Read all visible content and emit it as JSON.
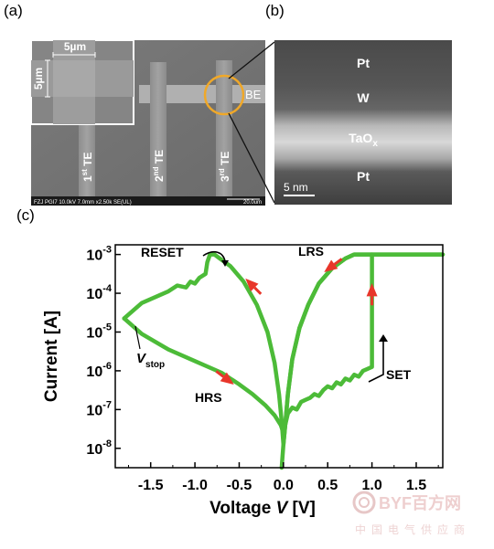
{
  "panels": {
    "a": {
      "label": "(a)",
      "inset_scale_top": "5µm",
      "inset_scale_left": "5µm",
      "be_label": "BE",
      "te_labels": [
        {
          "base": "1",
          "sup": "st",
          "tail": " TE"
        },
        {
          "base": "2",
          "sup": "nd",
          "tail": " TE"
        },
        {
          "base": "3",
          "sup": "rd",
          "tail": " TE"
        }
      ],
      "sem_info": "FZJ PGI7  10.0kV 7.0mm x2.50k SE(UL)",
      "sem_scale": "20.0um"
    },
    "b": {
      "label": "(b)",
      "layers": [
        "Pt",
        "W",
        "TaO",
        "Pt"
      ],
      "tao_sub": "x",
      "scale_bar": "5 nm"
    },
    "c": {
      "label": "(c)",
      "annotations": {
        "reset": "RESET",
        "lrs": "LRS",
        "set": "SET",
        "hrs": "HRS",
        "vstop_main": "V",
        "vstop_sub": "stop"
      }
    }
  },
  "chart_data": {
    "type": "line",
    "title": "",
    "xlabel_main": "Voltage ",
    "xlabel_var": "V",
    "xlabel_unit": " [V]",
    "ylabel": "Current [A]",
    "x_ticks": [
      "-1.5",
      "-1.0",
      "-0.5",
      "0.0",
      "0.5",
      "1.0",
      "1.5"
    ],
    "x_tick_values": [
      -1.5,
      -1.0,
      -0.5,
      0.0,
      0.5,
      1.0,
      1.5
    ],
    "y_ticks": [
      {
        "base": "10",
        "exp": "-3",
        "value": -3
      },
      {
        "base": "10",
        "exp": "-4",
        "value": -4
      },
      {
        "base": "10",
        "exp": "-5",
        "value": -5
      },
      {
        "base": "10",
        "exp": "-6",
        "value": -6
      },
      {
        "base": "10",
        "exp": "-7",
        "value": -7
      },
      {
        "base": "10",
        "exp": "-8",
        "value": -8
      }
    ],
    "xlim": [
      -1.9,
      1.8
    ],
    "ylim_log10": [
      -8.5,
      -2.75
    ],
    "yscale": "log",
    "series_color": "#4cbb38",
    "arrow_color": "#e8362a",
    "series": [
      {
        "name": "",
        "points": [
          [
            -0.02,
            -8.5
          ],
          [
            0.0,
            -7.9
          ],
          [
            0.02,
            -7.4
          ],
          [
            0.05,
            -6.6
          ],
          [
            0.1,
            -5.7
          ],
          [
            0.18,
            -4.9
          ],
          [
            0.28,
            -4.3
          ],
          [
            0.4,
            -3.75
          ],
          [
            0.55,
            -3.35
          ],
          [
            0.7,
            -3.1
          ],
          [
            0.8,
            -3.0
          ],
          [
            1.0,
            -3.0
          ],
          [
            1.4,
            -3.0
          ],
          [
            1.8,
            -3.0
          ]
        ]
      },
      {
        "name": "",
        "points": [
          [
            1.8,
            -3.0
          ],
          [
            1.0,
            -3.0
          ],
          [
            0.8,
            -3.0
          ],
          [
            0.7,
            -3.1
          ],
          [
            0.55,
            -3.35
          ],
          [
            0.4,
            -3.75
          ],
          [
            0.28,
            -4.3
          ],
          [
            0.18,
            -4.9
          ],
          [
            0.1,
            -5.7
          ],
          [
            0.05,
            -6.6
          ],
          [
            0.02,
            -7.4
          ],
          [
            0.0,
            -7.9
          ]
        ]
      },
      {
        "name": "",
        "points": [
          [
            0.0,
            -7.9
          ],
          [
            -0.02,
            -7.3
          ],
          [
            -0.05,
            -6.6
          ],
          [
            -0.1,
            -5.8
          ],
          [
            -0.18,
            -5.0
          ],
          [
            -0.3,
            -4.3
          ],
          [
            -0.45,
            -3.7
          ],
          [
            -0.6,
            -3.3
          ],
          [
            -0.72,
            -3.1
          ],
          [
            -0.78,
            -3.0
          ],
          [
            -0.83,
            -3.0
          ]
        ]
      },
      {
        "name": "",
        "points": [
          [
            -0.83,
            -3.0
          ],
          [
            -0.86,
            -3.2
          ],
          [
            -0.88,
            -3.5
          ],
          [
            -0.95,
            -3.6
          ],
          [
            -1.0,
            -3.75
          ],
          [
            -1.05,
            -3.7
          ],
          [
            -1.1,
            -3.85
          ],
          [
            -1.2,
            -3.8
          ],
          [
            -1.3,
            -3.95
          ],
          [
            -1.4,
            -4.05
          ],
          [
            -1.5,
            -4.15
          ],
          [
            -1.6,
            -4.25
          ],
          [
            -1.7,
            -4.45
          ],
          [
            -1.8,
            -4.65
          ]
        ]
      },
      {
        "name": "",
        "points": [
          [
            -1.8,
            -4.65
          ],
          [
            -1.6,
            -5.05
          ],
          [
            -1.3,
            -5.45
          ],
          [
            -1.0,
            -5.75
          ],
          [
            -0.7,
            -6.05
          ],
          [
            -0.5,
            -6.35
          ],
          [
            -0.35,
            -6.6
          ],
          [
            -0.2,
            -6.9
          ],
          [
            -0.1,
            -7.15
          ],
          [
            -0.03,
            -7.4
          ],
          [
            0.0,
            -7.6
          ]
        ]
      },
      {
        "name": "",
        "points": [
          [
            0.0,
            -7.6
          ],
          [
            0.05,
            -7.1
          ],
          [
            0.1,
            -6.95
          ],
          [
            0.15,
            -7.0
          ],
          [
            0.2,
            -6.8
          ],
          [
            0.25,
            -6.75
          ],
          [
            0.3,
            -6.7
          ],
          [
            0.35,
            -6.6
          ],
          [
            0.4,
            -6.65
          ],
          [
            0.45,
            -6.5
          ],
          [
            0.5,
            -6.4
          ],
          [
            0.55,
            -6.45
          ],
          [
            0.6,
            -6.3
          ],
          [
            0.65,
            -6.35
          ],
          [
            0.7,
            -6.2
          ],
          [
            0.75,
            -6.25
          ],
          [
            0.8,
            -6.1
          ],
          [
            0.85,
            -6.15
          ],
          [
            0.9,
            -6.0
          ],
          [
            0.95,
            -5.95
          ],
          [
            1.0,
            -5.9
          ],
          [
            1.0,
            -5.0
          ],
          [
            1.0,
            -4.0
          ],
          [
            1.0,
            -3.0
          ]
        ]
      }
    ],
    "arrows": [
      {
        "x": 1.0,
        "y": -4.0,
        "direction": "up"
      },
      {
        "x": 0.55,
        "y": -3.3,
        "direction": "down-left"
      },
      {
        "x": -0.35,
        "y": -3.8,
        "direction": "up-left"
      },
      {
        "x": -0.65,
        "y": -6.2,
        "direction": "down-right"
      }
    ]
  },
  "watermark": {
    "logo": "BYF百方网",
    "tagline": "中国电气供应商"
  }
}
